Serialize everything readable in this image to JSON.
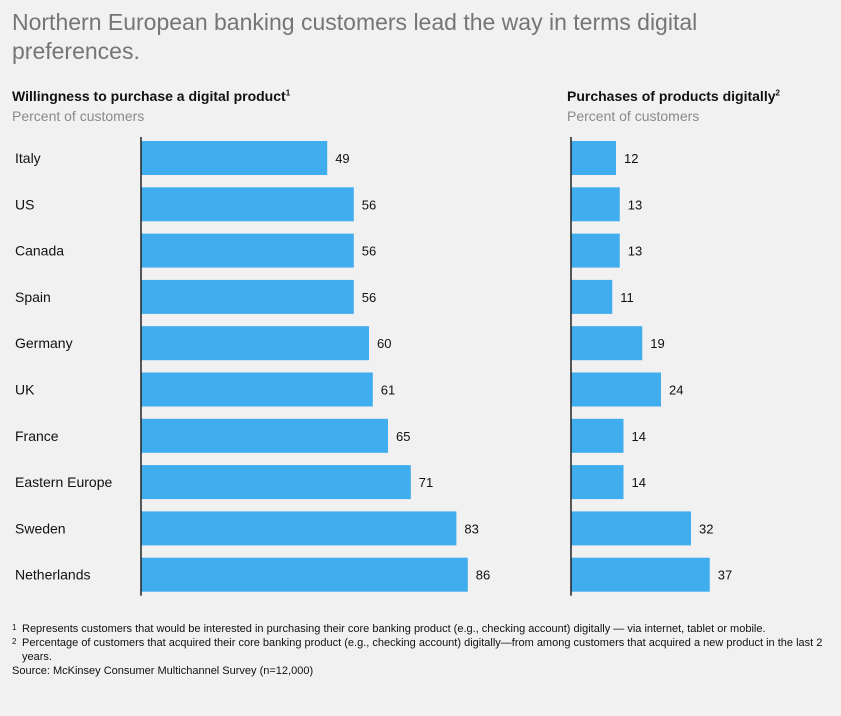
{
  "title": "Northern European banking customers lead the way in terms digital preferences.",
  "colors": {
    "bar": "#40adee",
    "axis": "#222222",
    "background": "#f1f1f1"
  },
  "chart_data": [
    {
      "type": "bar",
      "orientation": "horizontal",
      "title": "Willingness to purchase a digital product",
      "title_mark": "1",
      "subtitle": "Percent of customers",
      "categories": [
        "Italy",
        "US",
        "Canada",
        "Spain",
        "Germany",
        "UK",
        "France",
        "Eastern Europe",
        "Sweden",
        "Netherlands"
      ],
      "values": [
        49,
        56,
        56,
        56,
        60,
        61,
        65,
        71,
        83,
        86
      ],
      "xlim": [
        0,
        100
      ]
    },
    {
      "type": "bar",
      "orientation": "horizontal",
      "title": "Purchases of products digitally",
      "title_mark": "2",
      "subtitle": "Percent of customers",
      "categories": [
        "Italy",
        "US",
        "Canada",
        "Spain",
        "Germany",
        "UK",
        "France",
        "Eastern Europe",
        "Sweden",
        "Netherlands"
      ],
      "values": [
        12,
        13,
        13,
        11,
        19,
        24,
        14,
        14,
        32,
        37
      ],
      "xlim": [
        0,
        40
      ]
    }
  ],
  "footnotes": [
    {
      "mark": "1",
      "text": "Represents customers that would be interested in purchasing their core banking product (e.g., checking account) digitally — via internet, tablet or mobile."
    },
    {
      "mark": "2",
      "text": "Percentage of customers that acquired their core banking product (e.g., checking account) digitally—from among customers that acquired a new product in the last 2 years."
    }
  ],
  "source": "Source: McKinsey Consumer Multichannel Survey (n=12,000)"
}
